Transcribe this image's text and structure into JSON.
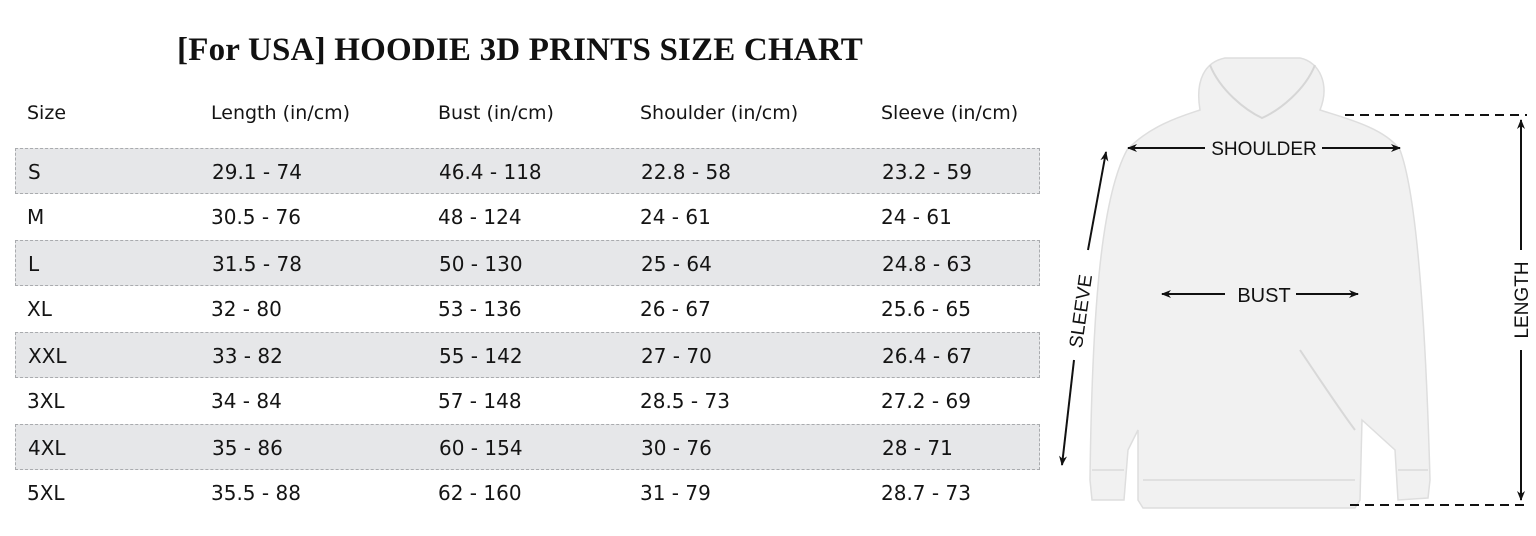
{
  "title": "[For USA] HOODIE 3D PRINTS SIZE CHART",
  "table": {
    "headers": [
      "Size",
      "Length (in/cm)",
      "Bust (in/cm)",
      "Shoulder (in/cm)",
      "Sleeve (in/cm)"
    ],
    "rows": [
      [
        "S",
        "29.1 - 74",
        "46.4 - 118",
        "22.8 - 58",
        "23.2 - 59"
      ],
      [
        "M",
        "30.5 - 76",
        "48 - 124",
        "24 - 61",
        "24 - 61"
      ],
      [
        "L",
        "31.5 - 78",
        "50 - 130",
        "25 - 64",
        "24.8 - 63"
      ],
      [
        "XL",
        "32 - 80",
        "53 - 136",
        "26 - 67",
        "25.6 - 65"
      ],
      [
        "XXL",
        "33 - 82",
        "55 - 142",
        "27 - 70",
        "26.4 - 67"
      ],
      [
        "3XL",
        "34 - 84",
        "57 - 148",
        "28.5 - 73",
        "27.2 - 69"
      ],
      [
        "4XL",
        "35 - 86",
        "60 - 154",
        "30 - 76",
        "28 - 71"
      ],
      [
        "5XL",
        "35.5 - 88",
        "62 - 160",
        "31 - 79",
        "28.7 - 73"
      ]
    ],
    "shade_color": "#e6e7e9"
  },
  "diagram": {
    "shoulder_label": "SHOULDER",
    "bust_label": "BUST",
    "sleeve_label": "SLEEVE",
    "length_label": "LENGTH"
  }
}
